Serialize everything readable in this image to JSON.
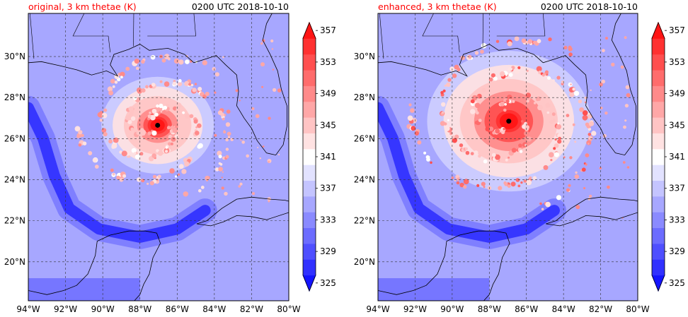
{
  "chart_data": [
    {
      "type": "heatmap",
      "panel": "left",
      "title_left": "original, 3 km thetae (K)",
      "title_right": "0200 UTC 2018-10-10",
      "x_ticks": [
        "94°W",
        "92°W",
        "90°W",
        "88°W",
        "86°W",
        "84°W",
        "82°W",
        "80°W"
      ],
      "y_ticks": [
        "20°N",
        "22°N",
        "24°N",
        "26°N",
        "28°N",
        "30°N"
      ],
      "x_tick_values": [
        -94,
        -92,
        -90,
        -88,
        -86,
        -84,
        -82,
        -80
      ],
      "y_tick_values": [
        20,
        22,
        24,
        26,
        28,
        30
      ],
      "xlim": [
        -94,
        -80
      ],
      "ylim": [
        18.1,
        32.1
      ],
      "grid": true,
      "colorbar_ticks": [
        "325",
        "329",
        "333",
        "337",
        "341",
        "345",
        "349",
        "353",
        "357"
      ],
      "colorbar_levels": [
        325,
        327,
        329,
        331,
        333,
        335,
        337,
        339,
        341,
        343,
        345,
        347,
        349,
        351,
        353,
        355,
        357,
        359
      ],
      "storm_center": {
        "lon": -87.05,
        "lat": 26.65
      },
      "features": {
        "core_value": 359,
        "core_radius_deg": 0.35,
        "eyewall_radius_deg": 1.0,
        "warm_envelope_radius_deg": 2.2,
        "background_value": 336
      }
    },
    {
      "type": "heatmap",
      "panel": "right",
      "title_left": "enhanced, 3 km thetae (K)",
      "title_right": "0200 UTC 2018-10-10",
      "x_ticks": [
        "94°W",
        "92°W",
        "90°W",
        "88°W",
        "86°W",
        "84°W",
        "82°W",
        "80°W"
      ],
      "y_ticks": [
        "20°N",
        "22°N",
        "24°N",
        "26°N",
        "28°N",
        "30°N"
      ],
      "x_tick_values": [
        -94,
        -92,
        -90,
        -88,
        -86,
        -84,
        -82,
        -80
      ],
      "y_tick_values": [
        20,
        22,
        24,
        26,
        28,
        30
      ],
      "xlim": [
        -94,
        -80
      ],
      "ylim": [
        18.1,
        32.1
      ],
      "grid": true,
      "colorbar_ticks": [
        "325",
        "329",
        "333",
        "337",
        "341",
        "345",
        "349",
        "353",
        "357"
      ],
      "colorbar_levels": [
        325,
        327,
        329,
        331,
        333,
        335,
        337,
        339,
        341,
        343,
        345,
        347,
        349,
        351,
        353,
        355,
        357,
        359
      ],
      "storm_center": {
        "lon": -86.95,
        "lat": 26.85
      },
      "features": {
        "core_value": 359,
        "core_radius_deg": 0.45,
        "eyewall_radius_deg": 1.7,
        "warm_envelope_radius_deg": 3.2,
        "background_value": 336
      }
    }
  ],
  "colors": {
    "title_left": "#ff0000",
    "title_right": "#000000",
    "cold": "#0000ff",
    "neutral": "#ffffff",
    "warm": "#ff0000",
    "eye_marker": "#000000"
  }
}
